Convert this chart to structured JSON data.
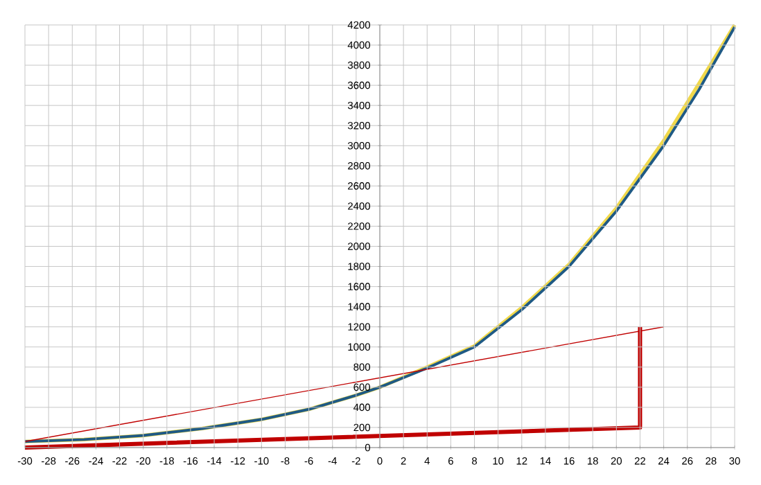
{
  "chart_data": {
    "type": "line",
    "xlim": [
      -30,
      30
    ],
    "ylim": [
      0,
      4200
    ],
    "xticks": [
      -30,
      -28,
      -26,
      -24,
      -22,
      -20,
      -18,
      -16,
      -14,
      -12,
      -10,
      -8,
      -6,
      -4,
      -2,
      0,
      2,
      4,
      6,
      8,
      10,
      12,
      14,
      16,
      18,
      20,
      22,
      24,
      26,
      28,
      30
    ],
    "yticks": [
      0,
      200,
      400,
      600,
      800,
      1000,
      1200,
      1400,
      1600,
      1800,
      2000,
      2200,
      2400,
      2600,
      2800,
      3000,
      3200,
      3400,
      3600,
      3800,
      4000,
      4200
    ],
    "grid": true,
    "marker": "none",
    "line_style": "solid",
    "series": [
      {
        "color": "#f0d84a",
        "x": [
          -30,
          -25,
          -20,
          -15,
          -10,
          -6,
          -2,
          0,
          4,
          8,
          12,
          16,
          20,
          24,
          27,
          30
        ],
        "values": [
          60,
          80,
          120,
          190,
          280,
          380,
          520,
          600,
          800,
          1010,
          1390,
          1820,
          2380,
          3050,
          3620,
          4200
        ]
      },
      {
        "color": "#1f5a85",
        "x": [
          -30,
          -25,
          -20,
          -15,
          -10,
          -6,
          -2,
          0,
          4,
          8,
          12,
          16,
          20,
          24,
          27,
          30
        ],
        "values": [
          60,
          80,
          120,
          190,
          280,
          380,
          520,
          600,
          790,
          1000,
          1370,
          1800,
          2350,
          3000,
          3560,
          4180
        ]
      },
      {
        "color": "#c00000",
        "x": [
          -30,
          24
        ],
        "values": [
          60,
          1200
        ]
      },
      {
        "color": "#c00000",
        "x": [
          -30,
          22,
          22
        ],
        "values": [
          0,
          200,
          1200
        ]
      }
    ]
  }
}
